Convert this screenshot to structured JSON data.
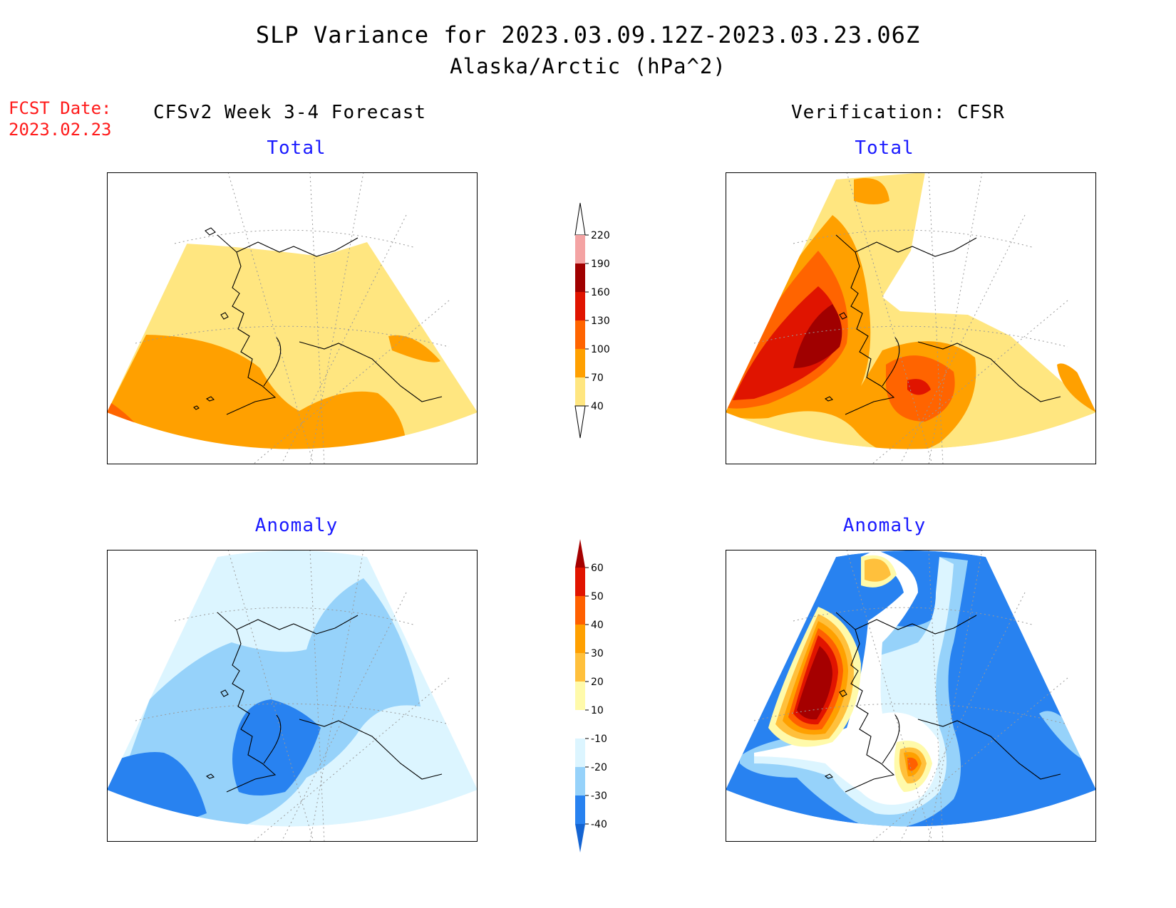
{
  "header": {
    "title_line1": "SLP Variance for 2023.03.09.12Z-2023.03.23.06Z",
    "title_line2": "Alaska/Arctic (hPa^2)",
    "fcst_label": "FCST Date:",
    "fcst_date": "2023.02.23",
    "left_column": "CFSv2 Week 3-4 Forecast",
    "right_column": "Verification: CFSR"
  },
  "panels": {
    "forecast_total": "Total",
    "verification_total": "Total",
    "forecast_anomaly": "Anomaly",
    "verification_anomaly": "Anomaly"
  },
  "legends": {
    "total": {
      "levels": [
        "40",
        "70",
        "100",
        "130",
        "160",
        "190",
        "220"
      ],
      "colors": [
        "#ffe680",
        "#ffa000",
        "#ff6400",
        "#e01400",
        "#a00000",
        "#f4a3a3",
        "#ffe6e6"
      ]
    },
    "anomaly": {
      "levels": [
        "-40",
        "-30",
        "-20",
        "-10",
        "10",
        "20",
        "30",
        "40",
        "50",
        "60"
      ],
      "colors": [
        "#1464d2",
        "#2882f0",
        "#96d2fa",
        "#dcf5ff",
        "#ffffff",
        "#fffaaa",
        "#ffc03c",
        "#ffa000",
        "#ff6000",
        "#e11400",
        "#a50000"
      ]
    }
  },
  "colors": {
    "fcst_text": "#ff1a1a",
    "subtitle_text": "#1a1aff"
  }
}
